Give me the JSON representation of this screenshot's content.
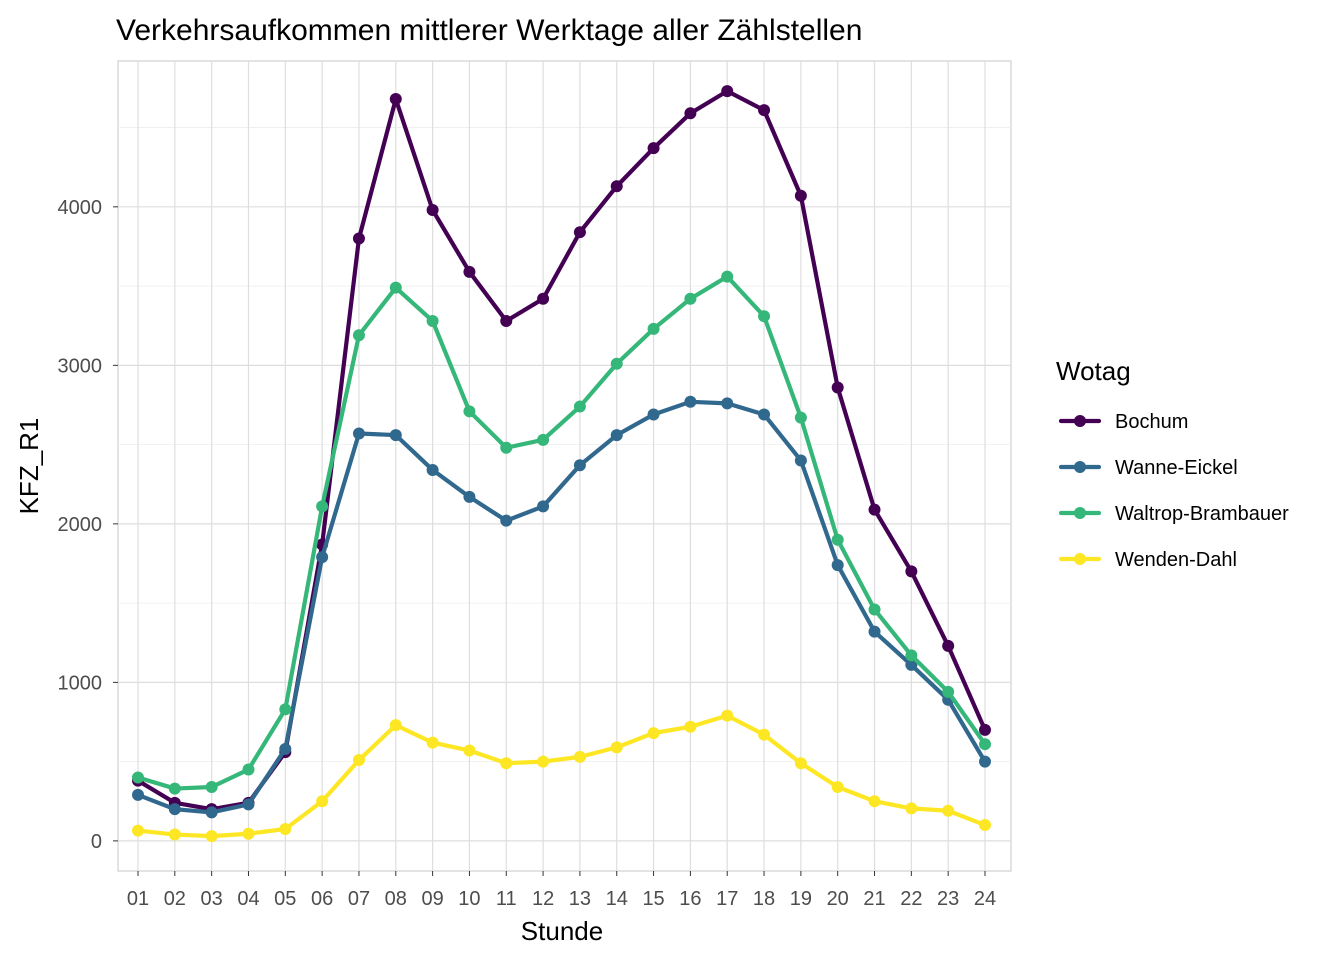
{
  "chart_data": {
    "type": "line",
    "title": "Verkehrsaufkommen mittlerer Werktage aller Zählstellen",
    "xlabel": "Stunde",
    "ylabel": "KFZ_R1",
    "categories": [
      "01",
      "02",
      "03",
      "04",
      "05",
      "06",
      "07",
      "08",
      "09",
      "10",
      "11",
      "12",
      "13",
      "14",
      "15",
      "16",
      "17",
      "18",
      "19",
      "20",
      "21",
      "22",
      "23",
      "24"
    ],
    "ylim": [
      -190,
      4920
    ],
    "yticks": [
      0,
      1000,
      2000,
      3000,
      4000
    ],
    "ytick_labels": [
      "0",
      "1000",
      "2000",
      "3000",
      "4000"
    ],
    "grid": true,
    "legend": {
      "title": "Wotag",
      "placement": "right"
    },
    "series": [
      {
        "name": "Bochum",
        "color": "#440154",
        "values": [
          380,
          240,
          200,
          240,
          560,
          1870,
          3800,
          4680,
          3980,
          3590,
          3280,
          3420,
          3840,
          4130,
          4370,
          4590,
          4730,
          4610,
          4070,
          2860,
          2090,
          1700,
          1230,
          700
        ]
      },
      {
        "name": "Wanne-Eickel",
        "color": "#31688E",
        "values": [
          290,
          200,
          180,
          230,
          580,
          1790,
          2570,
          2560,
          2340,
          2170,
          2020,
          2110,
          2370,
          2560,
          2690,
          2770,
          2760,
          2690,
          2400,
          1740,
          1320,
          1110,
          890,
          500
        ]
      },
      {
        "name": "Waltrop-Brambauer",
        "color": "#35B779",
        "values": [
          400,
          330,
          340,
          450,
          830,
          2110,
          3190,
          3490,
          3280,
          2710,
          2480,
          2530,
          2740,
          3010,
          3230,
          3420,
          3560,
          3310,
          2670,
          1900,
          1460,
          1170,
          940,
          610
        ]
      },
      {
        "name": "Wenden-Dahl",
        "color": "#FDE725",
        "values": [
          65,
          40,
          30,
          45,
          75,
          250,
          510,
          730,
          620,
          570,
          490,
          500,
          530,
          590,
          680,
          720,
          790,
          670,
          490,
          340,
          250,
          205,
          190,
          100
        ]
      }
    ]
  }
}
